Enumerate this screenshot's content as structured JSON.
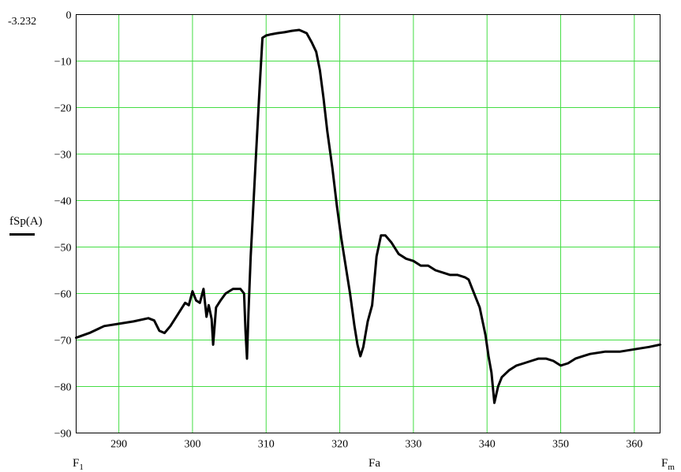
{
  "chart_data": {
    "type": "line",
    "y_label": "fSp(A)",
    "y_marker": "-3.232",
    "x_labels": {
      "left": "F",
      "left_sub": "1",
      "mid": "Fa",
      "right": "F",
      "right_sub": "m"
    },
    "xlim": [
      284.2,
      363.5
    ],
    "ylim": [
      -90,
      0
    ],
    "x_ticks": [
      "290",
      "300",
      "310",
      "320",
      "330",
      "340",
      "350",
      "360"
    ],
    "x_tick_values": [
      290,
      300,
      310,
      320,
      330,
      340,
      350,
      360
    ],
    "y_ticks": [
      "0",
      "−10",
      "−20",
      "−30",
      "−40",
      "−50",
      "−60",
      "−70",
      "−80",
      "−90"
    ],
    "y_tick_values": [
      0,
      -10,
      -20,
      -30,
      -40,
      -50,
      -60,
      -70,
      -80,
      -90
    ],
    "grid": true,
    "series": [
      {
        "color": "#000000",
        "x": [
          284.2,
          286,
          288,
          290,
          292,
          294,
          294.8,
          295.5,
          296.2,
          297,
          298,
          299,
          299.5,
          300,
          300.5,
          301,
          301.5,
          301.9,
          302.2,
          302.6,
          302.8,
          303.2,
          303.8,
          304.5,
          305.5,
          306.5,
          307,
          307.2,
          307.4,
          307.6,
          307.9,
          308.3,
          308.7,
          309.1,
          309.5,
          310,
          310.5,
          311.5,
          312.5,
          313.5,
          314.5,
          315.5,
          316.2,
          316.8,
          317.3,
          317.8,
          318.3,
          319,
          319.6,
          320.2,
          320.8,
          321.4,
          322,
          322.4,
          322.8,
          323.2,
          323.8,
          324.4,
          325,
          325.6,
          326.2,
          327,
          328,
          329,
          330,
          331,
          332,
          333,
          334,
          335,
          336,
          337,
          337.5,
          338,
          338.5,
          339,
          339.4,
          339.8,
          340.2,
          340.6,
          341,
          341.5,
          342,
          343,
          344,
          345,
          346,
          347,
          348,
          349,
          350,
          351,
          352,
          353,
          354,
          356,
          358,
          360,
          362,
          363.5
        ],
        "y": [
          -69.5,
          -68.5,
          -67,
          -66.5,
          -66,
          -65.3,
          -65.8,
          -68,
          -68.5,
          -67,
          -64.5,
          -62,
          -62.5,
          -59.5,
          -61.5,
          -62,
          -59,
          -65,
          -62.5,
          -65.5,
          -71,
          -63,
          -61.5,
          -60,
          -59,
          -59,
          -60,
          -68,
          -74,
          -64,
          -52,
          -40,
          -28,
          -16,
          -5,
          -4.5,
          -4.3,
          -4,
          -3.8,
          -3.5,
          -3.3,
          -4,
          -6,
          -8,
          -12,
          -18,
          -25,
          -33,
          -41,
          -48,
          -54,
          -60,
          -67,
          -71,
          -73.5,
          -71.5,
          -66,
          -62.5,
          -52,
          -47.5,
          -47.5,
          -49,
          -51.5,
          -52.5,
          -53,
          -54,
          -54,
          -55,
          -55.5,
          -56,
          -56,
          -56.5,
          -57,
          -59,
          -61,
          -63,
          -66,
          -69,
          -73.5,
          -77,
          -83.5,
          -80,
          -78,
          -76.5,
          -75.5,
          -75,
          -74.5,
          -74,
          -74,
          -74.5,
          -75.5,
          -75,
          -74,
          -73.5,
          -73,
          -72.5,
          -72.5,
          -72,
          -71.5,
          -71
        ]
      }
    ]
  }
}
